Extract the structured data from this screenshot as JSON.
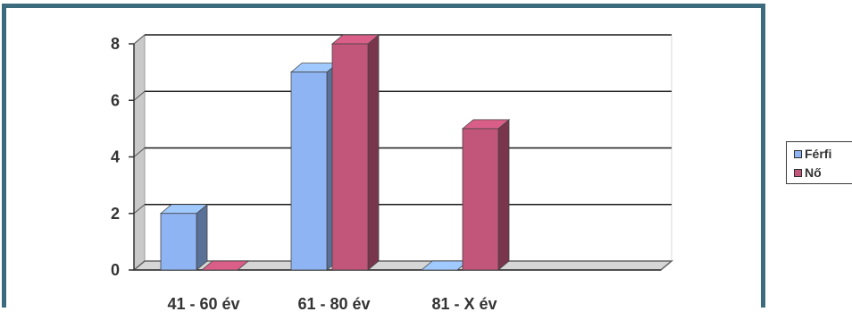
{
  "chart_data": {
    "type": "bar",
    "categories": [
      "41 - 60 év",
      "61 - 80 év",
      "81 - X év"
    ],
    "series": [
      {
        "name": "Férfi",
        "values": [
          2,
          7,
          0
        ],
        "color": "#8fb4f3"
      },
      {
        "name": "Nő",
        "values": [
          0,
          8,
          5
        ],
        "color": "#c2557a"
      }
    ],
    "ylim": [
      0,
      8
    ],
    "yticks": [
      0,
      2,
      4,
      6,
      8
    ],
    "grid": true,
    "legend_position": "right",
    "style": "3d-clustered-column"
  },
  "colors": {
    "frame": "#3d6b7e",
    "gridline": "#1a1a1a"
  }
}
